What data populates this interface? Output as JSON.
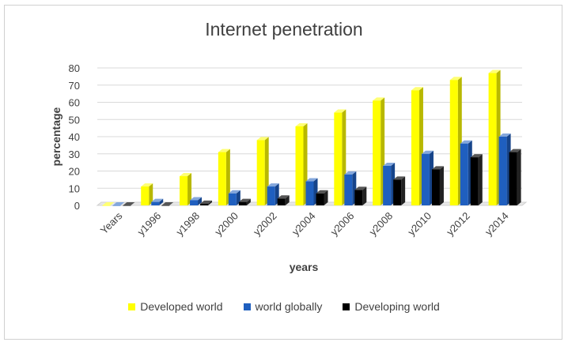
{
  "chart_data": {
    "type": "bar",
    "title": "Internet penetration",
    "xlabel": "years",
    "ylabel": "percentage",
    "ylim": [
      0,
      80
    ],
    "yticks": [
      0,
      10,
      20,
      30,
      40,
      50,
      60,
      70,
      80
    ],
    "categories": [
      "Years",
      "y1996",
      "y1998",
      "y2000",
      "y2002",
      "y2004",
      "y2006",
      "y2008",
      "y2010",
      "y2012",
      "y2014"
    ],
    "series": [
      {
        "name": "Developed world",
        "color": "#ffff00",
        "values": [
          0,
          11,
          17,
          31,
          38,
          46,
          54,
          61,
          67,
          73,
          77
        ]
      },
      {
        "name": "world globally",
        "color": "#1f5fbf",
        "values": [
          0,
          2,
          3,
          7,
          11,
          14,
          18,
          23,
          30,
          36,
          40
        ]
      },
      {
        "name": "Developing world",
        "color": "#000000",
        "values": [
          0,
          0,
          1,
          2,
          4,
          7,
          9,
          15,
          21,
          28,
          31
        ]
      }
    ],
    "grid": true,
    "legend_position": "bottom",
    "style": "3d-bars"
  }
}
